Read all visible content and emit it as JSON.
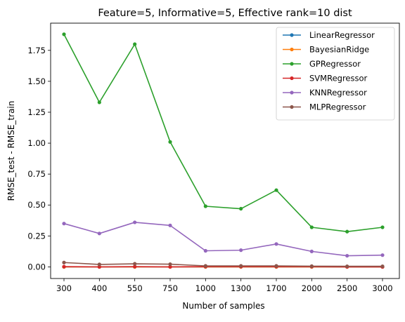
{
  "chart_data": {
    "type": "line",
    "title": "Feature=5, Informative=5, Effective rank=10 dist",
    "xlabel": "Number of samples",
    "ylabel": "RMSE_test - RMSE_train",
    "categories": [
      "300",
      "400",
      "550",
      "750",
      "1000",
      "1300",
      "1700",
      "2000",
      "2500",
      "3000"
    ],
    "yticks": [
      "0.00",
      "0.25",
      "0.50",
      "0.75",
      "1.00",
      "1.25",
      "1.50",
      "1.75"
    ],
    "ylim": [
      -0.094,
      1.97
    ],
    "grid": false,
    "legend_position": "top-right",
    "series": [
      {
        "name": "LinearRegressor",
        "color": "#1f77b4",
        "values": [
          0.0,
          0.0,
          0.0,
          0.0,
          0.0,
          0.0,
          0.0,
          0.0,
          0.0,
          0.0
        ]
      },
      {
        "name": "BayesianRidge",
        "color": "#ff7f0e",
        "values": [
          0.0,
          0.0,
          0.0,
          0.0,
          0.0,
          0.0,
          0.0,
          0.0,
          0.0,
          0.0
        ]
      },
      {
        "name": "GPRegressor",
        "color": "#2ca02c",
        "values": [
          1.88,
          1.33,
          1.8,
          1.01,
          0.49,
          0.47,
          0.62,
          0.32,
          0.285,
          0.32
        ]
      },
      {
        "name": "SVMRegressor",
        "color": "#d62728",
        "values": [
          0.002,
          0.0,
          0.002,
          0.0,
          0.002,
          0.002,
          0.002,
          0.002,
          0.0,
          0.0
        ]
      },
      {
        "name": "KNNRegressor",
        "color": "#9467bd",
        "values": [
          0.35,
          0.27,
          0.36,
          0.335,
          0.13,
          0.135,
          0.185,
          0.125,
          0.09,
          0.095
        ]
      },
      {
        "name": "MLPRegressor",
        "color": "#8c564b",
        "values": [
          0.035,
          0.02,
          0.025,
          0.022,
          0.008,
          0.008,
          0.008,
          0.006,
          0.005,
          0.005
        ]
      }
    ]
  }
}
